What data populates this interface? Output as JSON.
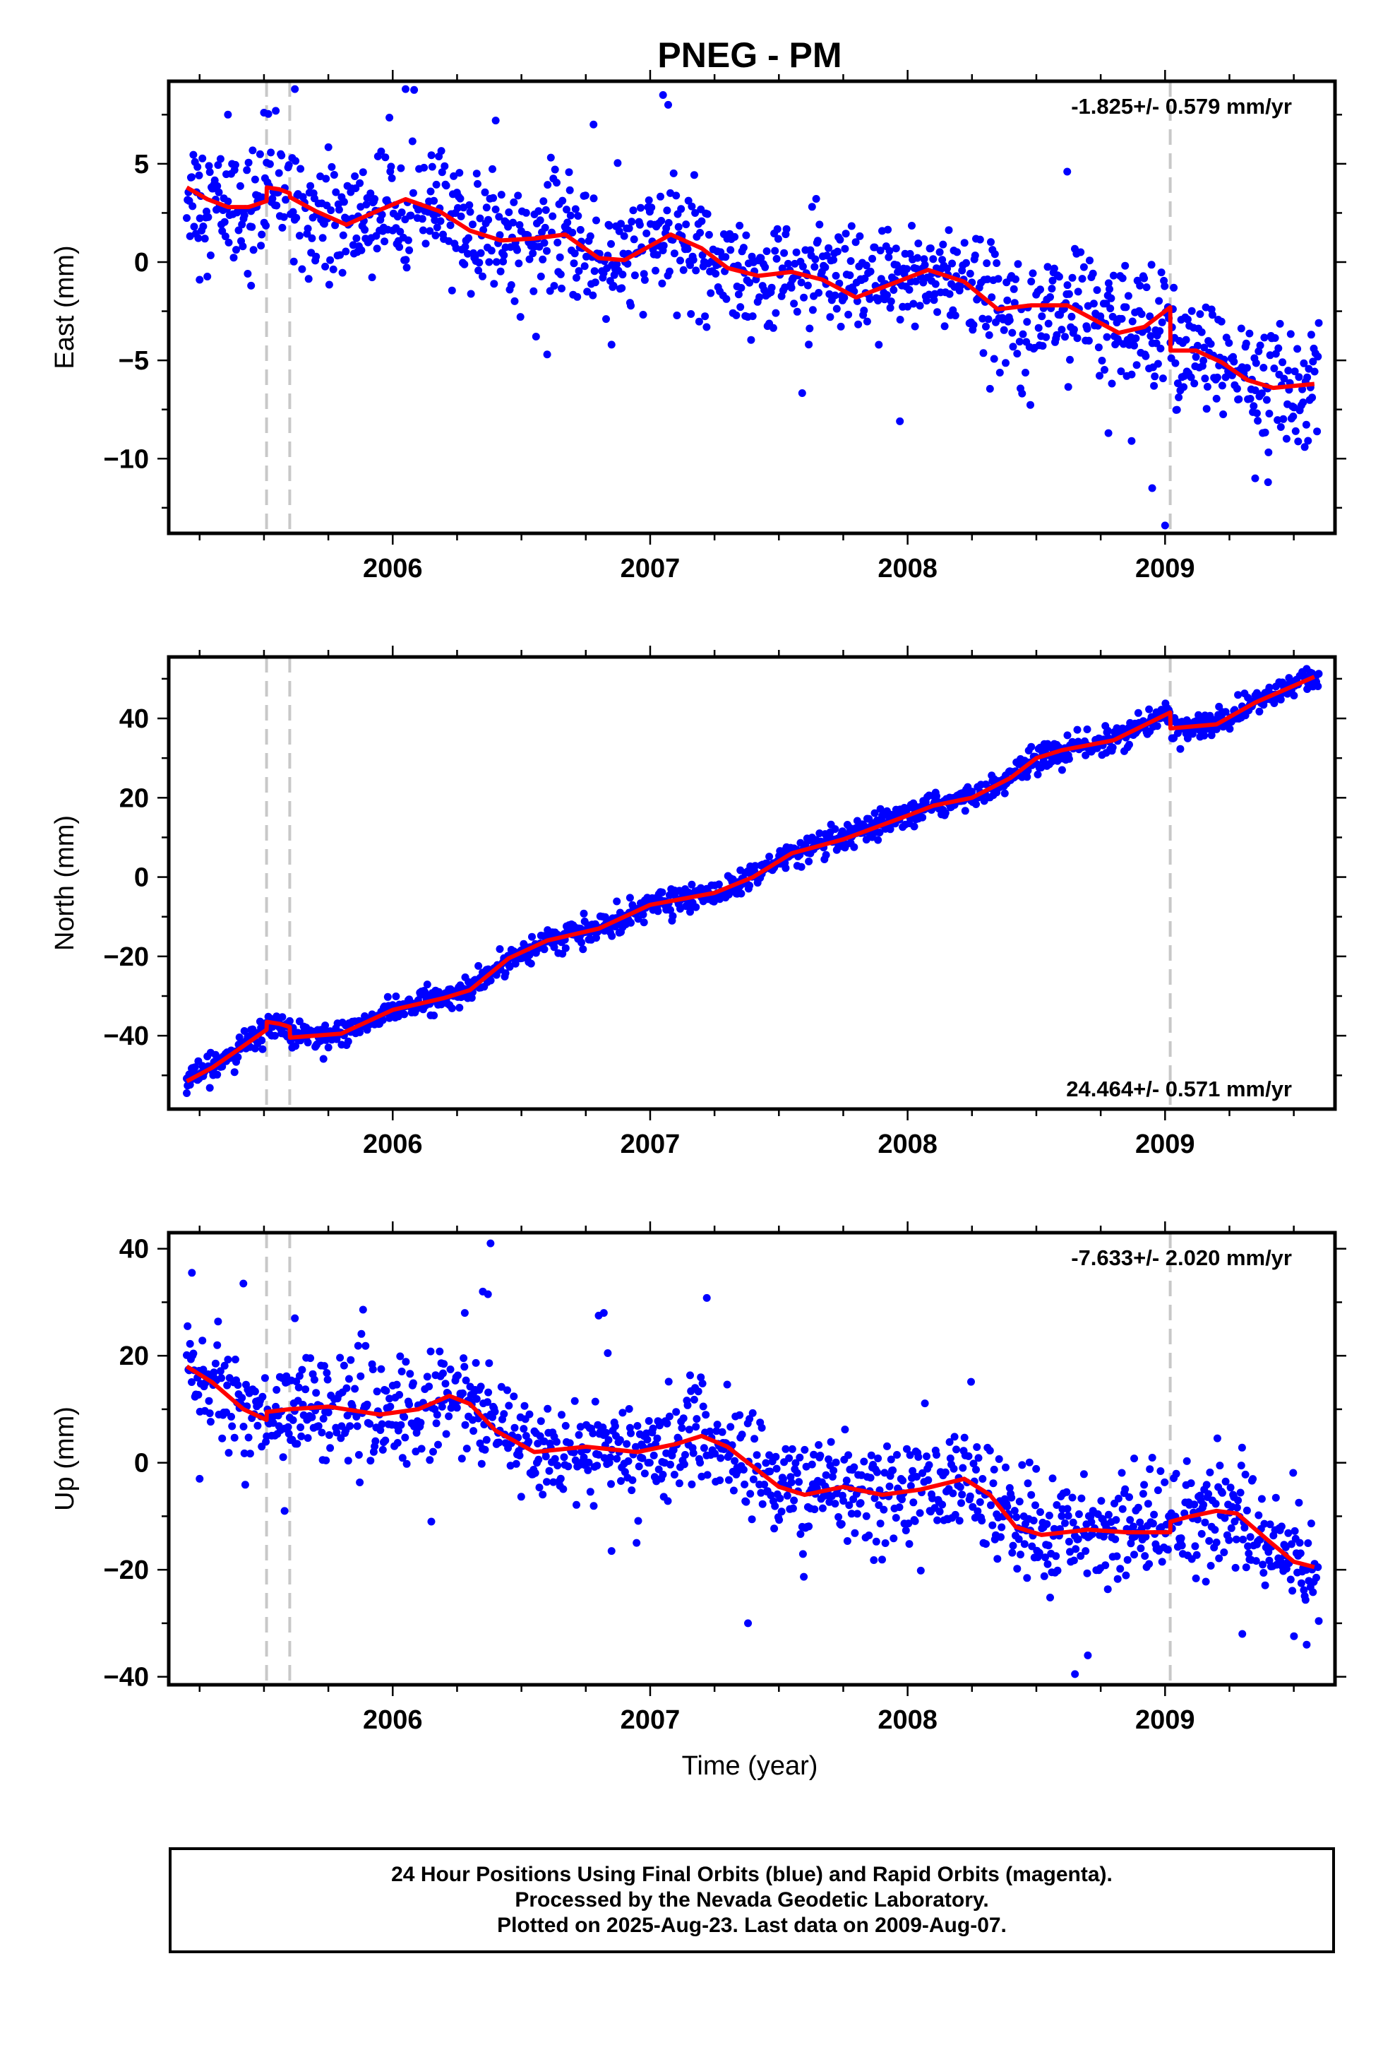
{
  "title": "PNEG - PM",
  "xlabel": "Time (year)",
  "footer": {
    "line1": "24 Hour Positions Using Final Orbits (blue) and Rapid Orbits (magenta).",
    "line2": "Processed by the Nevada Geodetic Laboratory.",
    "line3": "Plotted on 2025-Aug-23. Last data on 2009-Aug-07."
  },
  "colors": {
    "data_points": "#0000ff",
    "model_line": "#ff0000",
    "event_lines": "#c8c8c8",
    "frame": "#000000"
  },
  "chart_data": [
    {
      "type": "scatter",
      "component": "East",
      "ylabel": "East (mm)",
      "rate_label": "-1.825+/- 0.579 mm/yr",
      "xlim": [
        2005.13,
        2009.66
      ],
      "ylim": [
        -13.8,
        9.2
      ],
      "yticks": [
        -10,
        -5,
        0,
        5
      ],
      "xticks": [
        2006,
        2007,
        2008,
        2009
      ],
      "event_lines_x": [
        2005.51,
        2005.6,
        2009.02
      ],
      "model_line": [
        [
          2005.2,
          3.8
        ],
        [
          2005.28,
          3.2
        ],
        [
          2005.36,
          2.8
        ],
        [
          2005.44,
          2.8
        ],
        [
          2005.51,
          3.1
        ],
        [
          2005.511,
          3.8
        ],
        [
          2005.56,
          3.7
        ],
        [
          2005.6,
          3.5
        ],
        [
          2005.601,
          3.3
        ],
        [
          2005.7,
          2.6
        ],
        [
          2005.82,
          1.9
        ],
        [
          2005.94,
          2.6
        ],
        [
          2006.05,
          3.2
        ],
        [
          2006.18,
          2.6
        ],
        [
          2006.3,
          1.6
        ],
        [
          2006.42,
          1.1
        ],
        [
          2006.55,
          1.2
        ],
        [
          2006.67,
          1.4
        ],
        [
          2006.8,
          0.2
        ],
        [
          2006.9,
          0.1
        ],
        [
          2007.08,
          1.4
        ],
        [
          2007.2,
          0.7
        ],
        [
          2007.3,
          -0.3
        ],
        [
          2007.42,
          -0.7
        ],
        [
          2007.55,
          -0.5
        ],
        [
          2007.67,
          -0.9
        ],
        [
          2007.8,
          -1.8
        ],
        [
          2007.92,
          -1.2
        ],
        [
          2008.08,
          -0.4
        ],
        [
          2008.22,
          -1.0
        ],
        [
          2008.35,
          -2.4
        ],
        [
          2008.48,
          -2.2
        ],
        [
          2008.62,
          -2.2
        ],
        [
          2008.82,
          -3.6
        ],
        [
          2008.92,
          -3.3
        ],
        [
          2009.02,
          -2.3
        ],
        [
          2009.021,
          -4.5
        ],
        [
          2009.12,
          -4.5
        ],
        [
          2009.22,
          -5.1
        ],
        [
          2009.32,
          -6.0
        ],
        [
          2009.42,
          -6.4
        ],
        [
          2009.58,
          -6.2
        ]
      ],
      "outliers": [
        [
          2005.36,
          7.5
        ],
        [
          2005.5,
          7.6
        ],
        [
          2005.62,
          8.8
        ],
        [
          2006.05,
          8.8
        ],
        [
          2007.05,
          8.5
        ],
        [
          2007.07,
          8.0
        ],
        [
          2006.4,
          7.2
        ],
        [
          2006.78,
          7.0
        ],
        [
          2008.62,
          4.6
        ],
        [
          2008.95,
          -11.5
        ],
        [
          2009.0,
          -13.4
        ],
        [
          2009.35,
          -11.0
        ],
        [
          2009.4,
          -11.2
        ],
        [
          2007.97,
          -8.1
        ],
        [
          2006.6,
          -4.7
        ],
        [
          2006.85,
          -4.2
        ],
        [
          2005.25,
          -0.9
        ],
        [
          2005.45,
          -1.2
        ],
        [
          2008.87,
          -9.1
        ],
        [
          2008.78,
          -8.7
        ]
      ],
      "scatter_sd": 1.5
    },
    {
      "type": "scatter",
      "component": "North",
      "ylabel": "North (mm)",
      "rate_label": "24.464+/- 0.571 mm/yr",
      "xlim": [
        2005.13,
        2009.66
      ],
      "ylim": [
        -58.5,
        55.5
      ],
      "yticks": [
        -40,
        -20,
        0,
        20,
        40
      ],
      "xticks": [
        2006,
        2007,
        2008,
        2009
      ],
      "event_lines_x": [
        2005.51,
        2005.6,
        2009.02
      ],
      "model_line": [
        [
          2005.2,
          -51.5
        ],
        [
          2005.3,
          -48.0
        ],
        [
          2005.4,
          -43.5
        ],
        [
          2005.51,
          -38.5
        ],
        [
          2005.511,
          -36.5
        ],
        [
          2005.56,
          -37.0
        ],
        [
          2005.6,
          -37.8
        ],
        [
          2005.601,
          -40.5
        ],
        [
          2005.8,
          -39.5
        ],
        [
          2006.0,
          -33.5
        ],
        [
          2006.2,
          -30.5
        ],
        [
          2006.3,
          -28.5
        ],
        [
          2006.45,
          -20.5
        ],
        [
          2006.6,
          -16.0
        ],
        [
          2006.8,
          -13.0
        ],
        [
          2007.0,
          -7.0
        ],
        [
          2007.25,
          -4.0
        ],
        [
          2007.4,
          0.0
        ],
        [
          2007.55,
          6.0
        ],
        [
          2007.75,
          9.5
        ],
        [
          2008.0,
          15.5
        ],
        [
          2008.1,
          18.0
        ],
        [
          2008.25,
          20.0
        ],
        [
          2008.4,
          25.0
        ],
        [
          2008.5,
          30.0
        ],
        [
          2008.6,
          32.0
        ],
        [
          2008.8,
          34.5
        ],
        [
          2009.02,
          41.5
        ],
        [
          2009.021,
          37.5
        ],
        [
          2009.2,
          38.5
        ],
        [
          2009.35,
          44.0
        ],
        [
          2009.58,
          50.5
        ]
      ],
      "outliers": [
        [
          2005.2,
          -54.5
        ],
        [
          2008.6,
          27.0
        ],
        [
          2008.98,
          40.0
        ],
        [
          2009.55,
          52.5
        ]
      ],
      "scatter_sd": 1.6
    },
    {
      "type": "scatter",
      "component": "Up",
      "ylabel": "Up (mm)",
      "rate_label": "-7.633+/- 2.020 mm/yr",
      "xlim": [
        2005.13,
        2009.66
      ],
      "ylim": [
        -41.5,
        43.0
      ],
      "yticks": [
        -40,
        -20,
        0,
        20,
        40
      ],
      "xticks": [
        2006,
        2007,
        2008,
        2009
      ],
      "event_lines_x": [
        2005.51,
        2005.6,
        2009.02
      ],
      "model_line": [
        [
          2005.2,
          18.0
        ],
        [
          2005.3,
          15.0
        ],
        [
          2005.42,
          10.0
        ],
        [
          2005.51,
          8.0
        ],
        [
          2005.511,
          9.5
        ],
        [
          2005.6,
          10.0
        ],
        [
          2005.75,
          10.5
        ],
        [
          2005.95,
          9.0
        ],
        [
          2006.1,
          10.0
        ],
        [
          2006.22,
          12.5
        ],
        [
          2006.3,
          11.0
        ],
        [
          2006.4,
          6.0
        ],
        [
          2006.55,
          2.0
        ],
        [
          2006.75,
          3.0
        ],
        [
          2006.95,
          2.0
        ],
        [
          2007.1,
          3.5
        ],
        [
          2007.2,
          5.0
        ],
        [
          2007.3,
          3.0
        ],
        [
          2007.5,
          -4.5
        ],
        [
          2007.6,
          -6.0
        ],
        [
          2007.75,
          -4.5
        ],
        [
          2007.9,
          -6.0
        ],
        [
          2008.05,
          -5.0
        ],
        [
          2008.22,
          -3.0
        ],
        [
          2008.32,
          -6.0
        ],
        [
          2008.42,
          -12.0
        ],
        [
          2008.52,
          -13.5
        ],
        [
          2008.7,
          -12.5
        ],
        [
          2008.85,
          -13.0
        ],
        [
          2009.02,
          -13.0
        ],
        [
          2009.021,
          -11.0
        ],
        [
          2009.1,
          -10.0
        ],
        [
          2009.2,
          -9.0
        ],
        [
          2009.28,
          -9.5
        ],
        [
          2009.4,
          -14.5
        ],
        [
          2009.5,
          -18.5
        ],
        [
          2009.58,
          -19.5
        ]
      ],
      "outliers": [
        [
          2005.22,
          35.5
        ],
        [
          2005.42,
          33.5
        ],
        [
          2005.62,
          27.0
        ],
        [
          2006.28,
          28.0
        ],
        [
          2006.35,
          32.0
        ],
        [
          2006.37,
          31.5
        ],
        [
          2006.38,
          41.0
        ],
        [
          2006.8,
          27.5
        ],
        [
          2006.82,
          28.0
        ],
        [
          2007.22,
          30.8
        ],
        [
          2006.85,
          -16.5
        ],
        [
          2007.38,
          -30.0
        ],
        [
          2008.65,
          -39.5
        ],
        [
          2008.7,
          -36.0
        ],
        [
          2009.3,
          -32.0
        ],
        [
          2009.55,
          -34.0
        ],
        [
          2005.25,
          -3.0
        ],
        [
          2005.58,
          -9.0
        ],
        [
          2006.15,
          -11.0
        ],
        [
          2008.88,
          0.8
        ]
      ],
      "scatter_sd": 5.0
    }
  ]
}
